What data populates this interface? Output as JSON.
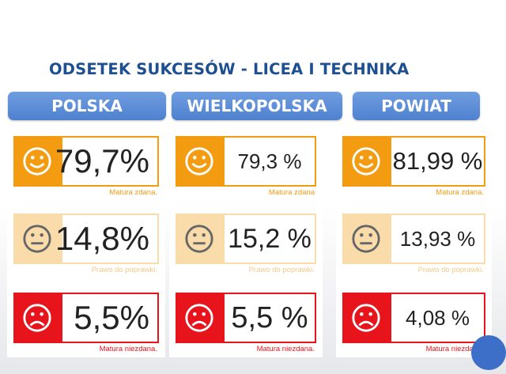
{
  "title": "ODSETEK SUKCESÓW - LICEA I TECHNIKA",
  "headers": [
    "POLSKA",
    "WIELKOPOLSKA",
    "POWIAT"
  ],
  "captions": {
    "pass": "Matura zdana.",
    "pass_alt": "Matura zdana",
    "retake": "Prawo do poprawki.",
    "fail": "Matura niezdana."
  },
  "panels": [
    {
      "pass": "79,7%",
      "retake": "14,8%",
      "fail": "5,5%"
    },
    {
      "pass": "79,3 %",
      "retake": "15,2 %",
      "fail": "5,5 %"
    },
    {
      "pass": "81,99 %",
      "retake": "13,93 %",
      "fail": "4,08 %"
    }
  ],
  "colors": {
    "title": "#1d4f91",
    "header": "#5b8dd9",
    "pass": "#f39c12",
    "retake": "#f9dcaa",
    "fail": "#e8141c"
  }
}
